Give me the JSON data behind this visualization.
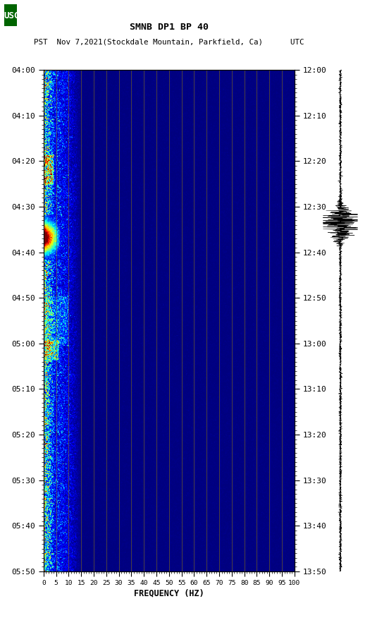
{
  "title_line1": "SMNB DP1 BP 40",
  "title_line2": "PST  Nov 7,2021(Stockdale Mountain, Parkfield, Ca)      UTC",
  "freq_min": 0,
  "freq_max": 100,
  "freq_ticks": [
    0,
    5,
    10,
    15,
    20,
    25,
    30,
    35,
    40,
    45,
    50,
    55,
    60,
    65,
    70,
    75,
    80,
    85,
    90,
    95,
    100
  ],
  "freq_label": "FREQUENCY (HZ)",
  "time_left_ticks": [
    "04:00",
    "04:10",
    "04:20",
    "04:30",
    "04:40",
    "04:50",
    "05:00",
    "05:10",
    "05:20",
    "05:30",
    "05:40",
    "05:50"
  ],
  "time_right_ticks": [
    "12:00",
    "12:10",
    "12:20",
    "12:30",
    "12:40",
    "12:50",
    "13:00",
    "13:10",
    "13:20",
    "13:30",
    "13:40",
    "13:50"
  ],
  "background_color": "#ffffff",
  "golden_line_color": "#8B7500",
  "usgs_green": "#006400",
  "fig_width": 5.52,
  "fig_height": 8.93,
  "dpi": 100
}
